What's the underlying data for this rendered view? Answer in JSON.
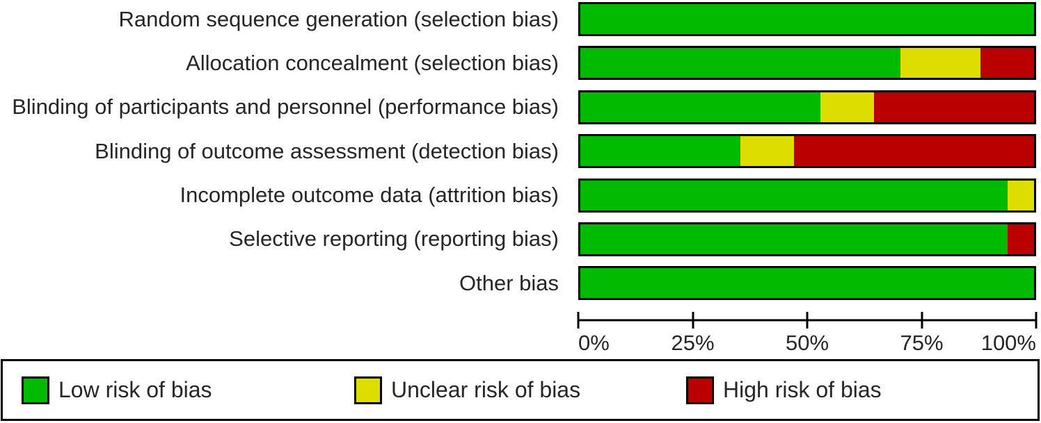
{
  "chart_data": {
    "type": "bar",
    "orientation": "horizontal",
    "stacked": true,
    "unit": "percent",
    "title": "",
    "xlabel": "",
    "ylabel": "",
    "xlim": [
      0,
      100
    ],
    "x_ticks": [
      "0%",
      "25%",
      "50%",
      "75%",
      "100%"
    ],
    "grid": false,
    "legend_position": "bottom",
    "categories": [
      "Random sequence generation (selection bias)",
      "Allocation concealment (selection bias)",
      "Blinding of participants and personnel (performance bias)",
      "Blinding of outcome assessment (detection bias)",
      "Incomplete outcome data (attrition bias)",
      "Selective reporting (reporting bias)",
      "Other bias"
    ],
    "series": [
      {
        "key": "low",
        "name": "Low risk of bias",
        "color": "#00bb00",
        "values": [
          100,
          70.6,
          52.9,
          35.3,
          94.1,
          94.1,
          100
        ]
      },
      {
        "key": "unclear",
        "name": "Unclear risk of bias",
        "color": "#dddd00",
        "values": [
          0,
          17.6,
          11.8,
          11.8,
          5.9,
          0,
          0
        ]
      },
      {
        "key": "high",
        "name": "High risk of bias",
        "color": "#bb0000",
        "values": [
          0,
          11.8,
          35.3,
          52.9,
          0,
          5.9,
          0
        ]
      }
    ]
  },
  "legend": {
    "items": [
      {
        "label": "Low risk of bias",
        "color": "#00bb00"
      },
      {
        "label": "Unclear risk of bias",
        "color": "#dddd00"
      },
      {
        "label": "High risk of bias",
        "color": "#bb0000"
      }
    ]
  },
  "colors": {
    "bar_border": "#000000",
    "axis": "#000000",
    "text": "#262626",
    "background": "#ffffff"
  }
}
